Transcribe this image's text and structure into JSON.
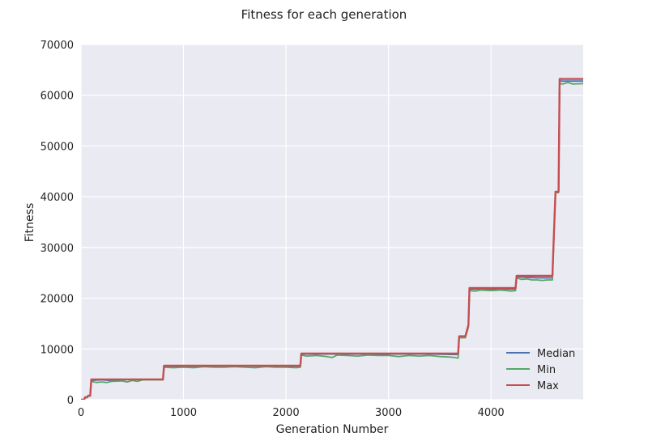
{
  "chart_data": {
    "type": "line",
    "title": "Fitness for each generation",
    "xlabel": "Generation Number",
    "ylabel": "Fitness",
    "xlim": [
      0,
      4900
    ],
    "ylim": [
      0,
      70000
    ],
    "xticks": [
      0,
      1000,
      2000,
      3000,
      4000
    ],
    "yticks": [
      0,
      10000,
      20000,
      30000,
      40000,
      50000,
      60000,
      70000
    ],
    "grid": true,
    "legend_position": "bottom-right",
    "series": [
      {
        "name": "Median",
        "color": "#4c72b0",
        "x": [
          0,
          30,
          40,
          60,
          70,
          90,
          100,
          200,
          300,
          500,
          700,
          800,
          810,
          1200,
          1500,
          1800,
          2100,
          2140,
          2150,
          2400,
          3000,
          3400,
          3680,
          3690,
          3750,
          3780,
          3790,
          4000,
          4240,
          4250,
          4450,
          4600,
          4610,
          4630,
          4660,
          4670,
          4900
        ],
        "y": [
          0,
          0,
          500,
          500,
          800,
          800,
          3800,
          3900,
          3800,
          4000,
          4000,
          4000,
          6600,
          6600,
          6700,
          6600,
          6600,
          6600,
          9000,
          9000,
          9000,
          9000,
          8900,
          12400,
          12400,
          14500,
          21800,
          21800,
          21800,
          24200,
          24000,
          24000,
          30000,
          41000,
          41000,
          62800,
          62800
        ]
      },
      {
        "name": "Min",
        "color": "#55a868",
        "x": [
          0,
          30,
          40,
          60,
          70,
          90,
          100,
          150,
          200,
          250,
          300,
          400,
          450,
          500,
          550,
          600,
          700,
          800,
          810,
          900,
          1000,
          1100,
          1200,
          1300,
          1400,
          1500,
          1600,
          1700,
          1800,
          1900,
          2000,
          2100,
          2140,
          2150,
          2200,
          2300,
          2400,
          2450,
          2500,
          2600,
          2700,
          2800,
          2900,
          3000,
          3100,
          3200,
          3300,
          3400,
          3500,
          3600,
          3650,
          3680,
          3690,
          3750,
          3780,
          3790,
          3850,
          3900,
          4000,
          4100,
          4200,
          4240,
          4250,
          4300,
          4350,
          4400,
          4450,
          4500,
          4550,
          4600,
          4610,
          4630,
          4660,
          4670,
          4700,
          4750,
          4800,
          4900
        ],
        "y": [
          0,
          0,
          400,
          400,
          700,
          700,
          3600,
          3400,
          3500,
          3400,
          3600,
          3700,
          3500,
          3800,
          3600,
          3900,
          3900,
          3900,
          6400,
          6300,
          6400,
          6300,
          6500,
          6400,
          6400,
          6500,
          6400,
          6300,
          6500,
          6400,
          6400,
          6300,
          6400,
          8800,
          8600,
          8700,
          8500,
          8300,
          8800,
          8700,
          8600,
          8800,
          8700,
          8700,
          8500,
          8700,
          8600,
          8700,
          8500,
          8400,
          8300,
          8200,
          12200,
          12200,
          14300,
          21500,
          21400,
          21600,
          21500,
          21600,
          21400,
          21500,
          24000,
          23700,
          23800,
          23600,
          23600,
          23500,
          23600,
          23600,
          29800,
          40800,
          40800,
          62300,
          62200,
          62500,
          62200,
          62300
        ]
      },
      {
        "name": "Max",
        "color": "#c44e52",
        "x": [
          0,
          30,
          40,
          60,
          70,
          90,
          100,
          800,
          810,
          2140,
          2150,
          3680,
          3690,
          3750,
          3780,
          3790,
          4240,
          4250,
          4600,
          4610,
          4630,
          4660,
          4670,
          4900
        ],
        "y": [
          0,
          0,
          500,
          500,
          800,
          800,
          4000,
          4000,
          6700,
          6700,
          9100,
          9100,
          12500,
          12500,
          14700,
          22000,
          22000,
          24400,
          24400,
          30200,
          41000,
          41000,
          63200,
          63200
        ]
      }
    ]
  }
}
